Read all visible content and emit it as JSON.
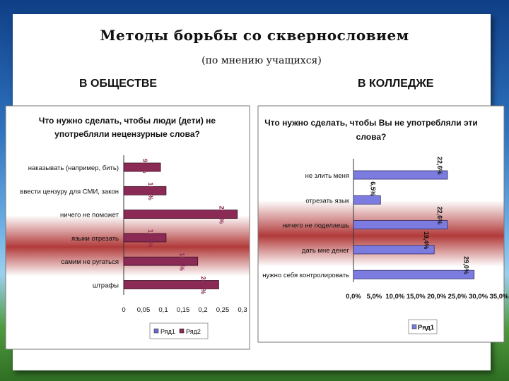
{
  "slide": {
    "title": "Методы борьбы со сквернословием",
    "subtitle": "(по мнению учащихся)",
    "left_heading": "В ОБЩЕСТВЕ",
    "right_heading": "В КОЛЛЕДЖЕ"
  },
  "chart_data": [
    {
      "type": "bar",
      "orientation": "horizontal",
      "title_lines": [
        "Что нужно сделать, чтобы люди (дети) не",
        "употребляли нецензурные слова?"
      ],
      "categories": [
        "наказывать (например, бить)",
        "ввести цензуру для СМИ, закон",
        "ничего не поможет",
        "языки отрезать",
        "самим не ругаться",
        "штрафы"
      ],
      "series": [
        {
          "name": "Ряд1",
          "values": [
            0,
            0,
            0,
            0,
            0,
            0
          ]
        },
        {
          "name": "Ряд2",
          "values": [
            0.093,
            0.107,
            0.287,
            0.107,
            0.187,
            0.24
          ]
        }
      ],
      "data_labels": [
        "9,3%",
        "10,7%",
        "28,7%",
        "10,7%",
        "18,7%",
        "24,0%"
      ],
      "xlim": [
        0,
        0.3
      ],
      "ticks": [
        "0",
        "0,05",
        "0,1",
        "0,15",
        "0,2",
        "0,25",
        "0,3"
      ],
      "legend": [
        "Ряд1",
        "Ряд2"
      ],
      "legend_position": "bottom",
      "colors": {
        "series2": "#8a2a55",
        "series1": "#6b6bd0"
      }
    },
    {
      "type": "bar",
      "orientation": "horizontal",
      "title_lines": [
        "Что нужно сделать, чтобы Вы не употребляли эти",
        "слова?"
      ],
      "categories": [
        "не злить меня",
        "отрезать язык",
        "ничего не поделаешь",
        "дать мне денег",
        "нужно себя контролировать"
      ],
      "series": [
        {
          "name": "Ряд1",
          "values": [
            22.6,
            6.5,
            22.6,
            19.4,
            29.0
          ]
        }
      ],
      "data_labels": [
        "22,6%",
        "6,5%",
        "22,6%",
        "19,4%",
        "29,0%"
      ],
      "xlim": [
        0,
        35
      ],
      "ticks": [
        "0,0%",
        "5,0%",
        "10,0%",
        "15,0%",
        "20,0%",
        "25,0%",
        "30,0%",
        "35,0%"
      ],
      "legend": [
        "Ряд1"
      ],
      "legend_position": "right",
      "colors": {
        "series1": "#7c7ce0"
      }
    }
  ]
}
